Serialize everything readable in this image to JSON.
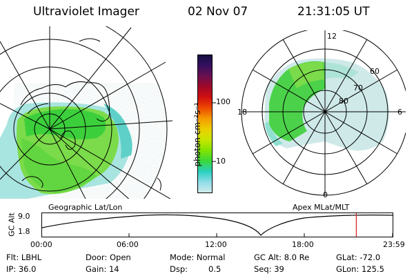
{
  "header": {
    "instrument": "Ultraviolet Imager",
    "date": "02 Nov 07",
    "time": "21:31:05 UT"
  },
  "left_panel": {
    "caption": "Geographic Lat/Lon"
  },
  "right_panel": {
    "caption": "Apex MLat/MLT",
    "mlt_labels": {
      "top": "12",
      "left": "18",
      "right": "6",
      "bottom": "0"
    },
    "mlat_labels": [
      "60",
      "70",
      "80"
    ]
  },
  "colorbar": {
    "unit_label": "photon cm⁻²s⁻¹",
    "ticks": [
      "100",
      "10"
    ],
    "colors": [
      "#151040",
      "#351060",
      "#6a1050",
      "#a00828",
      "#d01010",
      "#ee4a00",
      "#f59a00",
      "#eccf00",
      "#c8e600",
      "#82e400",
      "#3ad83a",
      "#2ad0c0",
      "#90dde8",
      "#d2eaea"
    ]
  },
  "altitude_plot": {
    "ylabel": "GC Alt",
    "yticks": [
      "9.0",
      "1.8"
    ],
    "xticks": [
      "00:00",
      "06:00",
      "12:00",
      "18:00",
      "23:59"
    ],
    "marker_time_fraction": 0.8966,
    "marker_color": "#d02020"
  },
  "footer": {
    "flt": "Flt: LBHL",
    "ip": "IP: 36.0",
    "door": "Door: Open",
    "gain": "Gain: 14",
    "mode": "Mode: Normal",
    "dsp": "Dsp:",
    "dsp_value": "0.5",
    "gc_alt": "GC Alt: 8.0 Re",
    "seq": "Seq: 39",
    "glat": "GLat: -72.0",
    "glon": "GLon: 125.5"
  }
}
